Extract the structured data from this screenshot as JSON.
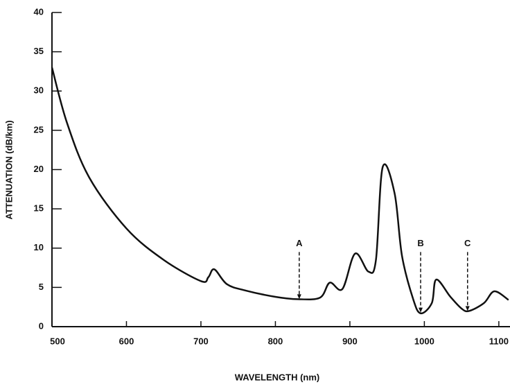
{
  "chart_data": {
    "type": "line",
    "xlabel": "WAVELENGTH (nm)",
    "ylabel": "ATTENUATION (dB/km)",
    "xlim": [
      500,
      1115
    ],
    "ylim": [
      0,
      40
    ],
    "xticks": [
      500,
      600,
      700,
      800,
      900,
      1000,
      1100
    ],
    "yticks": [
      0,
      5,
      10,
      15,
      20,
      25,
      30,
      35,
      40
    ],
    "series": [
      {
        "color": "#111111",
        "x": [
          500,
          520,
          550,
          600,
          650,
          700,
          710,
          718,
          735,
          760,
          800,
          830,
          860,
          873,
          890,
          907,
          925,
          935,
          944,
          960,
          970,
          985,
          995,
          1010,
          1016,
          1035,
          1050,
          1060,
          1080,
          1094,
          1113
        ],
        "values": [
          33,
          26,
          19,
          12.5,
          8.5,
          5.8,
          6.3,
          7.3,
          5.4,
          4.6,
          3.8,
          3.5,
          3.7,
          5.6,
          4.8,
          9.3,
          7,
          8.5,
          20.3,
          17,
          9,
          3.5,
          1.7,
          3,
          6,
          3.8,
          2.3,
          2,
          3,
          4.5,
          3.4
        ]
      }
    ],
    "annotations": [
      {
        "text": "A",
        "x": 832,
        "y": 3.5
      },
      {
        "text": "B",
        "x": 995,
        "y": 1.8
      },
      {
        "text": "C",
        "x": 1058,
        "y": 2
      }
    ]
  }
}
